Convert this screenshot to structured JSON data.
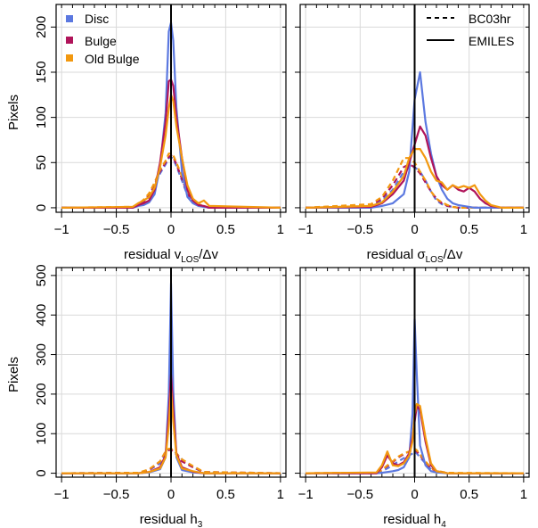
{
  "figure": {
    "ylabel": "Pixels",
    "legend_entries": [
      {
        "label": "Disc",
        "color": "#5b78e0"
      },
      {
        "label": "Bulge",
        "color": "#b0145a"
      },
      {
        "label": "Old Bulge",
        "color": "#f2980f"
      }
    ],
    "line_style_entries": [
      {
        "label": "BC03hr",
        "style": "dashed"
      },
      {
        "label": "EMILES",
        "style": "solid"
      }
    ]
  },
  "chart_data": [
    {
      "type": "line",
      "panel": "top-left",
      "xlabel": {
        "main": "residual v",
        "sub": "LOS",
        "tail": "/Δv"
      },
      "ylabel": "Pixels",
      "xlim": [
        -1.05,
        1.05
      ],
      "ylim": [
        -5,
        225
      ],
      "xticks": [
        -1,
        -0.5,
        0,
        0.5,
        1
      ],
      "xtick_labels": [
        "−1",
        "−0.5",
        "0",
        "0.5",
        "1"
      ],
      "yticks": [
        0,
        50,
        100,
        150,
        200
      ],
      "ytick_labels": [
        "0",
        "50",
        "100",
        "150",
        "200"
      ],
      "grid": true,
      "legend": "top-left",
      "vline": 0,
      "x": [
        -1.0,
        -0.35,
        -0.3,
        -0.25,
        -0.2,
        -0.15,
        -0.1,
        -0.05,
        -0.02,
        0.0,
        0.02,
        0.05,
        0.1,
        0.15,
        0.2,
        0.25,
        0.3,
        0.35,
        1.0
      ],
      "series": [
        {
          "name": "Disc",
          "line": "EMILES",
          "values": [
            0,
            0,
            2,
            3,
            6,
            15,
            45,
            105,
            195,
            205,
            185,
            110,
            40,
            12,
            5,
            2,
            1,
            0,
            0
          ]
        },
        {
          "name": "Bulge",
          "line": "EMILES",
          "values": [
            0,
            0,
            3,
            5,
            8,
            20,
            50,
            95,
            140,
            142,
            135,
            100,
            55,
            20,
            8,
            3,
            2,
            0,
            0
          ]
        },
        {
          "name": "Old Bulge",
          "line": "EMILES",
          "values": [
            0,
            1,
            5,
            8,
            12,
            22,
            45,
            80,
            110,
            125,
            118,
            90,
            55,
            25,
            10,
            5,
            8,
            2,
            0
          ]
        },
        {
          "name": "Disc",
          "line": "BC03hr",
          "values": [
            0,
            0,
            3,
            6,
            12,
            25,
            38,
            48,
            55,
            56,
            54,
            46,
            30,
            14,
            6,
            3,
            1,
            0,
            0
          ]
        },
        {
          "name": "Bulge",
          "line": "BC03hr",
          "values": [
            0,
            0,
            3,
            7,
            14,
            26,
            40,
            50,
            56,
            58,
            56,
            48,
            32,
            16,
            7,
            3,
            1,
            0,
            0
          ]
        },
        {
          "name": "Old Bulge",
          "line": "BC03hr",
          "values": [
            0,
            1,
            4,
            9,
            16,
            28,
            42,
            52,
            60,
            60,
            58,
            50,
            35,
            18,
            9,
            4,
            2,
            0,
            0
          ]
        }
      ]
    },
    {
      "type": "line",
      "panel": "top-right",
      "xlabel": {
        "main": "residual σ",
        "sub": "LOS",
        "tail": "/Δv"
      },
      "xlim": [
        -1.05,
        1.05
      ],
      "ylim": [
        -5,
        225
      ],
      "xticks": [
        -1,
        -0.5,
        0,
        0.5,
        1
      ],
      "xtick_labels": [
        "−1",
        "−0.5",
        "0",
        "0.5",
        "1"
      ],
      "yticks": [
        0,
        50,
        100,
        150,
        200
      ],
      "grid": true,
      "legend": "top-right",
      "vline": 0,
      "x": [
        -1.0,
        -0.4,
        -0.3,
        -0.2,
        -0.1,
        -0.05,
        0.0,
        0.05,
        0.1,
        0.15,
        0.2,
        0.25,
        0.3,
        0.35,
        0.4,
        0.45,
        0.5,
        0.55,
        0.6,
        0.65,
        0.7,
        0.8,
        1.0
      ],
      "series": [
        {
          "name": "Disc",
          "line": "EMILES",
          "values": [
            0,
            0,
            2,
            5,
            15,
            40,
            120,
            150,
            95,
            60,
            35,
            20,
            10,
            5,
            3,
            2,
            1,
            0,
            0,
            0,
            0,
            0,
            0
          ]
        },
        {
          "name": "Bulge",
          "line": "EMILES",
          "values": [
            0,
            1,
            5,
            15,
            30,
            50,
            70,
            90,
            80,
            55,
            35,
            25,
            20,
            25,
            20,
            18,
            22,
            18,
            10,
            5,
            2,
            0,
            0
          ]
        },
        {
          "name": "Old Bulge",
          "line": "EMILES",
          "values": [
            0,
            2,
            6,
            18,
            35,
            55,
            65,
            65,
            55,
            40,
            30,
            28,
            20,
            25,
            22,
            24,
            22,
            25,
            15,
            8,
            3,
            0,
            0
          ]
        },
        {
          "name": "Disc",
          "line": "BC03hr",
          "values": [
            0,
            2,
            8,
            20,
            40,
            45,
            45,
            40,
            30,
            18,
            8,
            4,
            2,
            1,
            0,
            0,
            0,
            0,
            0,
            0,
            0,
            0,
            0
          ]
        },
        {
          "name": "Bulge",
          "line": "BC03hr",
          "values": [
            0,
            3,
            10,
            25,
            45,
            48,
            45,
            38,
            28,
            18,
            10,
            5,
            2,
            1,
            0,
            0,
            0,
            0,
            0,
            0,
            0,
            0,
            0
          ]
        },
        {
          "name": "Old Bulge",
          "line": "BC03hr",
          "values": [
            0,
            4,
            12,
            30,
            55,
            55,
            50,
            40,
            30,
            18,
            10,
            6,
            3,
            1,
            0,
            0,
            0,
            0,
            0,
            0,
            0,
            0,
            0
          ]
        }
      ]
    },
    {
      "type": "line",
      "panel": "bottom-left",
      "xlabel": {
        "main": "residual h",
        "sub": "3",
        "tail": ""
      },
      "ylabel": "Pixels",
      "xlim": [
        -1.05,
        1.05
      ],
      "ylim": [
        -10,
        520
      ],
      "xticks": [
        -1,
        -0.5,
        0,
        0.5,
        1
      ],
      "xtick_labels": [
        "−1",
        "−0.5",
        "0",
        "0.5",
        "1"
      ],
      "yticks": [
        0,
        100,
        200,
        300,
        400,
        500
      ],
      "ytick_labels": [
        "0",
        "100",
        "200",
        "300",
        "400",
        "500"
      ],
      "grid": true,
      "vline": 0,
      "x": [
        -1.0,
        -0.3,
        -0.2,
        -0.1,
        -0.05,
        -0.02,
        0.0,
        0.02,
        0.05,
        0.1,
        0.2,
        0.3,
        1.0
      ],
      "series": [
        {
          "name": "Disc",
          "line": "EMILES",
          "values": [
            0,
            0,
            2,
            10,
            40,
            200,
            480,
            210,
            40,
            8,
            2,
            0,
            0
          ]
        },
        {
          "name": "Bulge",
          "line": "EMILES",
          "values": [
            0,
            0,
            3,
            15,
            45,
            150,
            250,
            160,
            50,
            15,
            4,
            0,
            0
          ]
        },
        {
          "name": "Old Bulge",
          "line": "EMILES",
          "values": [
            0,
            0,
            3,
            12,
            40,
            120,
            210,
            130,
            45,
            12,
            5,
            0,
            0
          ]
        },
        {
          "name": "Disc",
          "line": "BC03hr",
          "values": [
            0,
            1,
            8,
            25,
            50,
            60,
            62,
            58,
            50,
            35,
            15,
            2,
            0
          ]
        },
        {
          "name": "Bulge",
          "line": "BC03hr",
          "values": [
            0,
            1,
            8,
            30,
            55,
            58,
            60,
            55,
            48,
            30,
            15,
            3,
            0
          ]
        },
        {
          "name": "Old Bulge",
          "line": "BC03hr",
          "values": [
            0,
            1,
            10,
            30,
            55,
            62,
            62,
            58,
            50,
            35,
            18,
            3,
            0
          ]
        }
      ]
    },
    {
      "type": "line",
      "panel": "bottom-right",
      "xlabel": {
        "main": "residual h",
        "sub": "4",
        "tail": ""
      },
      "xlim": [
        -1.05,
        1.05
      ],
      "ylim": [
        -10,
        520
      ],
      "xticks": [
        -1,
        -0.5,
        0,
        0.5,
        1
      ],
      "xtick_labels": [
        "−1",
        "−0.5",
        "0",
        "0.5",
        "1"
      ],
      "yticks": [
        0,
        100,
        200,
        300,
        400,
        500
      ],
      "grid": true,
      "vline": 0,
      "x": [
        -1.0,
        -0.35,
        -0.3,
        -0.25,
        -0.2,
        -0.15,
        -0.1,
        -0.05,
        -0.02,
        0.0,
        0.02,
        0.05,
        0.1,
        0.15,
        0.2,
        0.3,
        1.0
      ],
      "series": [
        {
          "name": "Disc",
          "line": "EMILES",
          "values": [
            0,
            0,
            1,
            3,
            5,
            8,
            15,
            40,
            150,
            390,
            250,
            70,
            20,
            5,
            2,
            0,
            0
          ]
        },
        {
          "name": "Bulge",
          "line": "EMILES",
          "values": [
            0,
            0,
            15,
            45,
            25,
            20,
            28,
            50,
            90,
            130,
            170,
            160,
            80,
            20,
            5,
            0,
            0
          ]
        },
        {
          "name": "Old Bulge",
          "line": "EMILES",
          "values": [
            0,
            2,
            20,
            55,
            20,
            18,
            25,
            45,
            80,
            150,
            175,
            170,
            90,
            25,
            5,
            0,
            0
          ]
        },
        {
          "name": "Disc",
          "line": "BC03hr",
          "values": [
            0,
            0,
            5,
            12,
            20,
            30,
            38,
            45,
            50,
            55,
            50,
            40,
            25,
            10,
            4,
            0,
            0
          ]
        },
        {
          "name": "Bulge",
          "line": "BC03hr",
          "values": [
            0,
            1,
            8,
            18,
            28,
            40,
            48,
            55,
            58,
            60,
            55,
            45,
            28,
            12,
            5,
            0,
            0
          ]
        },
        {
          "name": "Old Bulge",
          "line": "BC03hr",
          "values": [
            0,
            1,
            8,
            20,
            30,
            42,
            50,
            55,
            60,
            62,
            58,
            48,
            30,
            14,
            6,
            1,
            0
          ]
        }
      ]
    }
  ]
}
